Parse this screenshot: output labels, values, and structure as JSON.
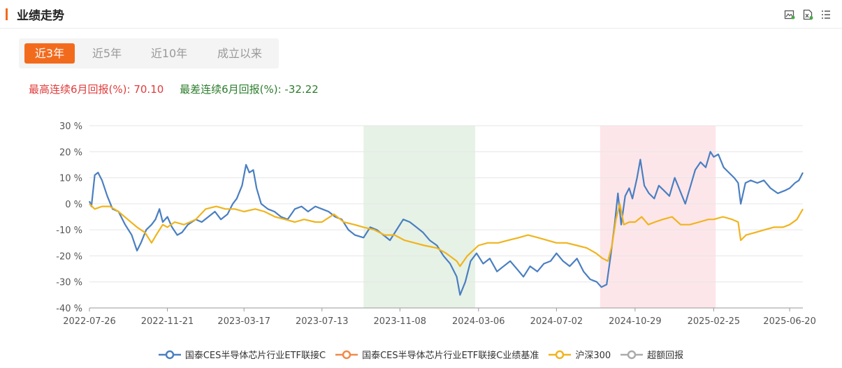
{
  "header": {
    "title": "业绩走势"
  },
  "toolbar": {
    "icons": [
      "image-export-icon",
      "excel-export-icon",
      "list-icon"
    ]
  },
  "tabs": [
    {
      "label": "近3年",
      "active": true
    },
    {
      "label": "近5年",
      "active": false
    },
    {
      "label": "近10年",
      "active": false
    },
    {
      "label": "成立以来",
      "active": false
    }
  ],
  "stats": {
    "best_label": "最高连续6月回报(%):",
    "best_value": "70.10",
    "worst_label": "最差连续6月回报(%):",
    "worst_value": "-32.22"
  },
  "chart_data": {
    "type": "line",
    "y_unit": "%",
    "ylim": [
      -40,
      30
    ],
    "yticks": [
      30,
      20,
      10,
      0,
      -10,
      -20,
      -30,
      -40
    ],
    "ytick_labels": [
      "30 %",
      "20 %",
      "10 %",
      "0 %",
      "-10 %",
      "-20 %",
      "-30 %",
      "-40 %"
    ],
    "xlim": [
      "2022-07-26",
      "2025-07-10"
    ],
    "xtick_labels": [
      "2022-07-26",
      "2022-11-21",
      "2023-03-17",
      "2023-07-13",
      "2023-11-08",
      "2024-03-06",
      "2024-07-02",
      "2024-10-29",
      "2025-02-25",
      "2025-06-20"
    ],
    "grid": true,
    "legend_position": "bottom",
    "shaded_regions": [
      {
        "start": "2023-09-14",
        "end": "2024-03-01",
        "color": "#e6f2e6"
      },
      {
        "start": "2024-09-06",
        "end": "2025-02-28",
        "color": "#fde6ea"
      }
    ],
    "series": [
      {
        "name": "国泰CES半导体芯片行业ETF联接C",
        "color": "#4a7fc1",
        "points": [
          [
            "2022-07-26",
            1
          ],
          [
            "2022-07-29",
            -1
          ],
          [
            "2022-08-03",
            11
          ],
          [
            "2022-08-08",
            12
          ],
          [
            "2022-08-14",
            9
          ],
          [
            "2022-08-22",
            3
          ],
          [
            "2022-08-30",
            -2
          ],
          [
            "2022-09-08",
            -3
          ],
          [
            "2022-09-18",
            -8
          ],
          [
            "2022-09-28",
            -12
          ],
          [
            "2022-10-06",
            -18
          ],
          [
            "2022-10-12",
            -15
          ],
          [
            "2022-10-20",
            -10
          ],
          [
            "2022-10-28",
            -8
          ],
          [
            "2022-11-03",
            -6
          ],
          [
            "2022-11-09",
            -2
          ],
          [
            "2022-11-14",
            -7
          ],
          [
            "2022-11-21",
            -5
          ],
          [
            "2022-11-28",
            -9
          ],
          [
            "2022-12-06",
            -12
          ],
          [
            "2022-12-13",
            -11
          ],
          [
            "2022-12-22",
            -8
          ],
          [
            "2023-01-03",
            -6
          ],
          [
            "2023-01-12",
            -7
          ],
          [
            "2023-01-22",
            -5
          ],
          [
            "2023-02-01",
            -3
          ],
          [
            "2023-02-10",
            -6
          ],
          [
            "2023-02-20",
            -4
          ],
          [
            "2023-02-28",
            0
          ],
          [
            "2023-03-06",
            2
          ],
          [
            "2023-03-14",
            7
          ],
          [
            "2023-03-20",
            15
          ],
          [
            "2023-03-25",
            12
          ],
          [
            "2023-03-31",
            13
          ],
          [
            "2023-04-05",
            6
          ],
          [
            "2023-04-12",
            0
          ],
          [
            "2023-04-22",
            -2
          ],
          [
            "2023-05-02",
            -3
          ],
          [
            "2023-05-12",
            -5
          ],
          [
            "2023-05-22",
            -6
          ],
          [
            "2023-06-02",
            -2
          ],
          [
            "2023-06-12",
            -1
          ],
          [
            "2023-06-22",
            -3
          ],
          [
            "2023-07-03",
            -1
          ],
          [
            "2023-07-13",
            -2
          ],
          [
            "2023-07-23",
            -3
          ],
          [
            "2023-08-02",
            -5
          ],
          [
            "2023-08-12",
            -6
          ],
          [
            "2023-08-22",
            -10
          ],
          [
            "2023-09-01",
            -12
          ],
          [
            "2023-09-14",
            -13
          ],
          [
            "2023-09-24",
            -9
          ],
          [
            "2023-10-04",
            -10
          ],
          [
            "2023-10-14",
            -12
          ],
          [
            "2023-10-24",
            -14
          ],
          [
            "2023-11-03",
            -10
          ],
          [
            "2023-11-13",
            -6
          ],
          [
            "2023-11-23",
            -7
          ],
          [
            "2023-12-03",
            -9
          ],
          [
            "2023-12-13",
            -11
          ],
          [
            "2023-12-23",
            -14
          ],
          [
            "2024-01-03",
            -16
          ],
          [
            "2024-01-13",
            -20
          ],
          [
            "2024-01-23",
            -23
          ],
          [
            "2024-02-02",
            -28
          ],
          [
            "2024-02-07",
            -35
          ],
          [
            "2024-02-15",
            -30
          ],
          [
            "2024-02-23",
            -22
          ],
          [
            "2024-03-03",
            -19
          ],
          [
            "2024-03-13",
            -23
          ],
          [
            "2024-03-23",
            -21
          ],
          [
            "2024-04-03",
            -26
          ],
          [
            "2024-04-13",
            -24
          ],
          [
            "2024-04-23",
            -22
          ],
          [
            "2024-05-03",
            -25
          ],
          [
            "2024-05-13",
            -28
          ],
          [
            "2024-05-23",
            -24
          ],
          [
            "2024-06-03",
            -26
          ],
          [
            "2024-06-13",
            -23
          ],
          [
            "2024-06-23",
            -22
          ],
          [
            "2024-07-02",
            -19
          ],
          [
            "2024-07-12",
            -22
          ],
          [
            "2024-07-22",
            -24
          ],
          [
            "2024-08-02",
            -21
          ],
          [
            "2024-08-12",
            -26
          ],
          [
            "2024-08-22",
            -29
          ],
          [
            "2024-09-01",
            -30
          ],
          [
            "2024-09-08",
            -32
          ],
          [
            "2024-09-16",
            -31
          ],
          [
            "2024-09-22",
            -20
          ],
          [
            "2024-09-28",
            -8
          ],
          [
            "2024-10-03",
            4
          ],
          [
            "2024-10-08",
            -8
          ],
          [
            "2024-10-14",
            3
          ],
          [
            "2024-10-20",
            6
          ],
          [
            "2024-10-25",
            2
          ],
          [
            "2024-11-01",
            10
          ],
          [
            "2024-11-06",
            17
          ],
          [
            "2024-11-12",
            7
          ],
          [
            "2024-11-19",
            4
          ],
          [
            "2024-11-27",
            2
          ],
          [
            "2024-12-04",
            7
          ],
          [
            "2024-12-12",
            5
          ],
          [
            "2024-12-20",
            3
          ],
          [
            "2024-12-28",
            10
          ],
          [
            "2025-01-05",
            5
          ],
          [
            "2025-01-13",
            0
          ],
          [
            "2025-01-20",
            6
          ],
          [
            "2025-01-28",
            13
          ],
          [
            "2025-02-05",
            16
          ],
          [
            "2025-02-13",
            14
          ],
          [
            "2025-02-20",
            20
          ],
          [
            "2025-02-25",
            18
          ],
          [
            "2025-03-04",
            19
          ],
          [
            "2025-03-12",
            14
          ],
          [
            "2025-03-20",
            12
          ],
          [
            "2025-03-28",
            10
          ],
          [
            "2025-04-03",
            8
          ],
          [
            "2025-04-07",
            0
          ],
          [
            "2025-04-14",
            8
          ],
          [
            "2025-04-22",
            9
          ],
          [
            "2025-05-02",
            8
          ],
          [
            "2025-05-12",
            9
          ],
          [
            "2025-05-22",
            6
          ],
          [
            "2025-06-02",
            4
          ],
          [
            "2025-06-12",
            5
          ],
          [
            "2025-06-20",
            6
          ],
          [
            "2025-06-28",
            8
          ],
          [
            "2025-07-04",
            9
          ],
          [
            "2025-07-10",
            12
          ]
        ]
      },
      {
        "name": "国泰CES半导体芯片行业ETF联接C业绩基准",
        "color": "#f0894a",
        "points": []
      },
      {
        "name": "沪深300",
        "color": "#f0b41d",
        "points": [
          [
            "2022-07-26",
            0
          ],
          [
            "2022-08-03",
            -2
          ],
          [
            "2022-08-14",
            -1
          ],
          [
            "2022-08-26",
            -1
          ],
          [
            "2022-09-08",
            -3
          ],
          [
            "2022-09-22",
            -6
          ],
          [
            "2022-10-06",
            -9
          ],
          [
            "2022-10-18",
            -11
          ],
          [
            "2022-10-28",
            -15
          ],
          [
            "2022-11-04",
            -12
          ],
          [
            "2022-11-14",
            -8
          ],
          [
            "2022-11-21",
            -9
          ],
          [
            "2022-12-02",
            -7
          ],
          [
            "2022-12-16",
            -8
          ],
          [
            "2023-01-03",
            -6
          ],
          [
            "2023-01-18",
            -2
          ],
          [
            "2023-02-03",
            -1
          ],
          [
            "2023-02-17",
            -2
          ],
          [
            "2023-03-03",
            -2
          ],
          [
            "2023-03-17",
            -3
          ],
          [
            "2023-04-03",
            -2
          ],
          [
            "2023-04-17",
            -3
          ],
          [
            "2023-05-03",
            -5
          ],
          [
            "2023-05-18",
            -6
          ],
          [
            "2023-06-02",
            -7
          ],
          [
            "2023-06-16",
            -6
          ],
          [
            "2023-07-03",
            -7
          ],
          [
            "2023-07-13",
            -7
          ],
          [
            "2023-07-31",
            -4
          ],
          [
            "2023-08-15",
            -7
          ],
          [
            "2023-08-31",
            -8
          ],
          [
            "2023-09-14",
            -9
          ],
          [
            "2023-09-30",
            -10
          ],
          [
            "2023-10-16",
            -12
          ],
          [
            "2023-10-31",
            -12
          ],
          [
            "2023-11-15",
            -14
          ],
          [
            "2023-11-30",
            -15
          ],
          [
            "2023-12-15",
            -16
          ],
          [
            "2024-01-03",
            -17
          ],
          [
            "2024-01-17",
            -19
          ],
          [
            "2024-02-02",
            -22
          ],
          [
            "2024-02-07",
            -24
          ],
          [
            "2024-02-18",
            -20
          ],
          [
            "2024-03-06",
            -16
          ],
          [
            "2024-03-20",
            -15
          ],
          [
            "2024-04-05",
            -15
          ],
          [
            "2024-04-20",
            -14
          ],
          [
            "2024-05-06",
            -13
          ],
          [
            "2024-05-20",
            -12
          ],
          [
            "2024-06-04",
            -13
          ],
          [
            "2024-06-18",
            -14
          ],
          [
            "2024-07-02",
            -15
          ],
          [
            "2024-07-17",
            -15
          ],
          [
            "2024-08-02",
            -16
          ],
          [
            "2024-08-17",
            -17
          ],
          [
            "2024-08-31",
            -19
          ],
          [
            "2024-09-10",
            -21
          ],
          [
            "2024-09-18",
            -22
          ],
          [
            "2024-09-24",
            -16
          ],
          [
            "2024-09-30",
            -6
          ],
          [
            "2024-10-06",
            0
          ],
          [
            "2024-10-12",
            -8
          ],
          [
            "2024-10-20",
            -7
          ],
          [
            "2024-10-29",
            -7
          ],
          [
            "2024-11-08",
            -5
          ],
          [
            "2024-11-18",
            -8
          ],
          [
            "2024-11-28",
            -7
          ],
          [
            "2024-12-10",
            -6
          ],
          [
            "2024-12-24",
            -5
          ],
          [
            "2025-01-06",
            -8
          ],
          [
            "2025-01-20",
            -8
          ],
          [
            "2025-02-03",
            -7
          ],
          [
            "2025-02-17",
            -6
          ],
          [
            "2025-02-25",
            -6
          ],
          [
            "2025-03-11",
            -5
          ],
          [
            "2025-03-25",
            -6
          ],
          [
            "2025-04-03",
            -7
          ],
          [
            "2025-04-07",
            -14
          ],
          [
            "2025-04-15",
            -12
          ],
          [
            "2025-04-29",
            -11
          ],
          [
            "2025-05-13",
            -10
          ],
          [
            "2025-05-27",
            -9
          ],
          [
            "2025-06-10",
            -9
          ],
          [
            "2025-06-20",
            -8
          ],
          [
            "2025-07-01",
            -6
          ],
          [
            "2025-07-10",
            -2
          ]
        ]
      },
      {
        "name": "超额回报",
        "color": "#aaaaaa",
        "points": []
      }
    ]
  }
}
